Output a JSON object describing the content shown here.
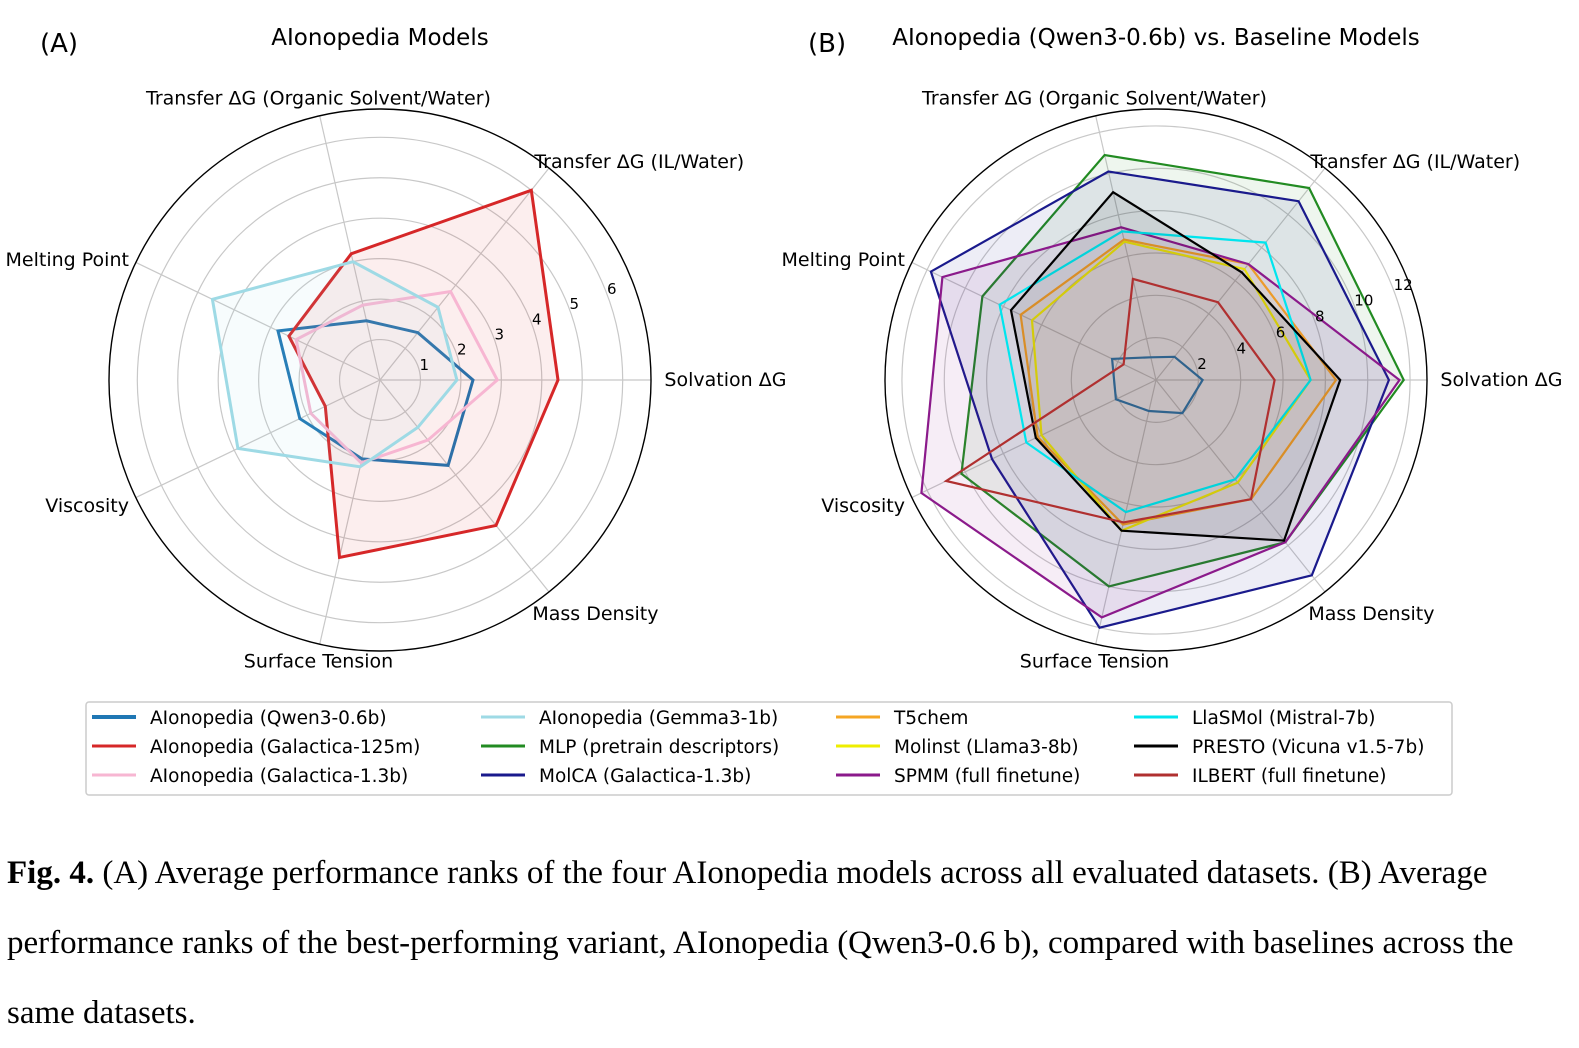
{
  "caption": {
    "label": "Fig. 4.",
    "text": " (A) Average performance ranks of the four AIonopedia models across all evaluated datasets. (B) Average performance ranks of the best-performing variant, AIonopedia (Qwen3-0.6 b), compared with baselines across the same datasets."
  },
  "chart_data": [
    {
      "type": "radar",
      "panel": "(A)",
      "title": "AIonopedia Models",
      "axes": [
        "Solvation ΔG",
        "Transfer ΔG (IL/Water)",
        "Transfer ΔG (Organic Solvent/Water)",
        "Melting Point",
        "Viscosity",
        "Surface Tension",
        "Mass Density"
      ],
      "rmax": 6.7,
      "ticks": [
        1,
        2,
        3,
        4,
        5,
        6
      ],
      "series": [
        {
          "name": "AIonopedia (Qwen3-0.6b)",
          "color": "#1f77b4",
          "values": [
            2.3,
            1.5,
            1.5,
            2.8,
            2.2,
            2.0,
            2.7
          ],
          "fill": false
        },
        {
          "name": "AIonopedia (Galactica-125m)",
          "color": "#d62728",
          "values": [
            4.4,
            6.0,
            3.2,
            2.5,
            1.5,
            4.5,
            4.6
          ],
          "fill": true
        },
        {
          "name": "AIonopedia (Galactica-1.3b)",
          "color": "#f7b6d2",
          "values": [
            2.9,
            2.8,
            1.9,
            2.3,
            1.9,
            2.1,
            1.9
          ],
          "fill": false
        },
        {
          "name": "AIonopedia (Gemma3-1b)",
          "color": "#9edae5",
          "values": [
            1.9,
            2.3,
            3.0,
            4.6,
            3.9,
            2.2,
            1.5
          ],
          "fill": true
        }
      ]
    },
    {
      "type": "radar",
      "panel": "(B)",
      "title": "AIonopedia (Qwen3-0.6b) vs. Baseline Models",
      "axes": [
        "Solvation ΔG",
        "Transfer ΔG (IL/Water)",
        "Transfer ΔG (Organic Solvent/Water)",
        "Melting Point",
        "Viscosity",
        "Surface Tension",
        "Mass Density"
      ],
      "rmax": 12.8,
      "ticks": [
        2,
        4,
        6,
        8,
        10,
        12
      ],
      "series": [
        {
          "name": "AIonopedia (Qwen3-0.6b)",
          "color": "#1f77b4",
          "values": [
            2.2,
            1.4,
            1.1,
            2.3,
            2.1,
            1.5,
            2.0
          ],
          "fill": false
        },
        {
          "name": "MLP (pretrain descriptors)",
          "color": "#228B22",
          "values": [
            11.7,
            11.6,
            10.9,
            9.1,
            10.2,
            10.0,
            9.8
          ],
          "fill": true
        },
        {
          "name": "MolCA (Galactica-1.3b)",
          "color": "#1a1a8c",
          "values": [
            11.0,
            10.8,
            10.1,
            11.8,
            8.6,
            12.0,
            11.8
          ],
          "fill": true
        },
        {
          "name": "T5chem",
          "color": "#f5a623",
          "values": [
            8.5,
            7.0,
            6.8,
            7.1,
            6.2,
            7.0,
            7.2
          ],
          "fill": true
        },
        {
          "name": "Molinst (Llama3-8b)",
          "color": "#eeee00",
          "values": [
            7.3,
            6.7,
            6.7,
            6.5,
            6.0,
            7.3,
            6.2
          ],
          "fill": false
        },
        {
          "name": "SPMM (full finetune)",
          "color": "#8b1a8b",
          "values": [
            11.5,
            7.0,
            7.4,
            11.2,
            12.3,
            11.5,
            9.8
          ],
          "fill": true
        },
        {
          "name": "LlaSMol (Mistral-7b)",
          "color": "#00e5ee",
          "values": [
            7.3,
            8.3,
            7.2,
            8.2,
            6.8,
            6.4,
            6.0
          ],
          "fill": false
        },
        {
          "name": "PRESTO (Vicuna v1.5-7b)",
          "color": "#000000",
          "values": [
            8.7,
            6.5,
            9.1,
            7.6,
            6.3,
            7.3,
            9.7
          ],
          "fill": true
        },
        {
          "name": "ILBERT (full finetune)",
          "color": "#b03030",
          "values": [
            5.6,
            4.7,
            4.9,
            1.7,
            11.0,
            6.9,
            7.2
          ],
          "fill": false
        }
      ]
    }
  ],
  "legend": [
    "AIonopedia (Qwen3-0.6b)",
    "AIonopedia (Galactica-125m)",
    "AIonopedia (Galactica-1.3b)",
    "AIonopedia (Gemma3-1b)",
    "MLP (pretrain descriptors)",
    "MolCA (Galactica-1.3b)",
    "T5chem",
    "Molinst (Llama3-8b)",
    "SPMM (full finetune)",
    "LlaSMol (Mistral-7b)",
    "PRESTO (Vicuna v1.5-7b)",
    "ILBERT (full finetune)"
  ],
  "legend_colors": [
    "#1f77b4",
    "#d62728",
    "#f7b6d2",
    "#9edae5",
    "#228B22",
    "#1a1a8c",
    "#f5a623",
    "#eeee00",
    "#8b1a8b",
    "#00e5ee",
    "#000000",
    "#b03030"
  ]
}
